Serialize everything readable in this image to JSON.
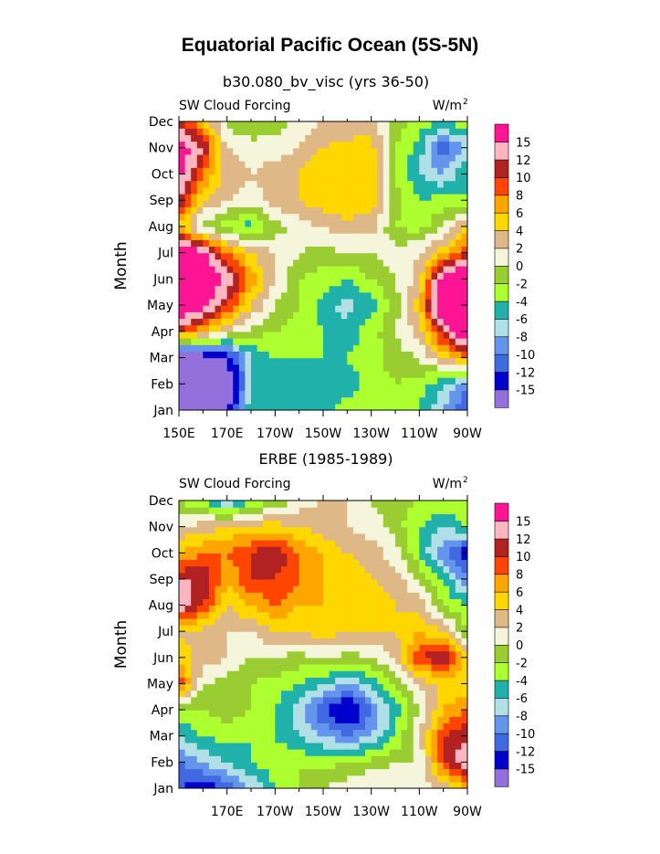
{
  "title": "Equatorial Pacific Ocean (5S-5N)",
  "colors": [
    "#9370DB",
    "#0000CD",
    "#4169E1",
    "#6495ED",
    "#B0E0E6",
    "#20B2AA",
    "#ADFF2F",
    "#9ACD32",
    "#F5F5DC",
    "#DEB887",
    "#FFD700",
    "#FFA500",
    "#FF4500",
    "#B22222",
    "#FFB6C1",
    "#FF1493"
  ],
  "colorbar_labels": [
    "-15",
    "-12",
    "-10",
    "-8",
    "-6",
    "-4",
    "-2",
    "0",
    "2",
    "4",
    "6",
    "8",
    "10",
    "12",
    "15"
  ],
  "chart_data": [
    {
      "type": "heatmap",
      "subtitle": "b30.080_bv_visc (yrs 36-50)",
      "left_label": "SW Cloud Forcing",
      "right_label": "W/m",
      "right_label_sup": "2",
      "ylabel": "Month",
      "y_ticks": [
        "Jan",
        "Feb",
        "Mar",
        "Apr",
        "May",
        "Jun",
        "Jul",
        "Aug",
        "Sep",
        "Oct",
        "Nov",
        "Dec"
      ],
      "x_ticks": [
        "150E",
        "170E",
        "170W",
        "150W",
        "130W",
        "110W",
        "90W"
      ],
      "x_tick_positions": [
        0,
        1,
        2,
        3,
        4,
        5,
        6
      ],
      "levels": [
        -15,
        -12,
        -10,
        -8,
        -6,
        -4,
        -2,
        0,
        2,
        4,
        6,
        8,
        10,
        12,
        15
      ],
      "x": [
        0,
        0.5,
        1,
        1.5,
        2,
        2.5,
        3,
        3.5,
        4,
        4.5,
        5,
        5.5,
        6
      ],
      "grid": [
        [
          -20,
          -20,
          -16,
          -4,
          -4,
          -6,
          -5,
          -3,
          -2,
          -2,
          -4,
          -8,
          -12
        ],
        [
          -20,
          -20,
          -18,
          -6,
          -4,
          -5,
          -5,
          -5,
          -3,
          -2,
          -3,
          -6,
          -10
        ],
        [
          -20,
          -18,
          -15,
          -6,
          -4,
          -4,
          -4,
          -4,
          -3,
          -1,
          0,
          4,
          8
        ],
        [
          10,
          6,
          2,
          -1,
          -2,
          -3,
          -4,
          -5,
          -3,
          0,
          3,
          12,
          20
        ],
        [
          20,
          16,
          10,
          4,
          0,
          -2,
          -5,
          -7,
          -5,
          -1,
          5,
          20,
          20
        ],
        [
          20,
          20,
          14,
          7,
          2,
          -2,
          -3,
          -4,
          -2,
          0,
          3,
          18,
          20
        ],
        [
          20,
          16,
          8,
          4,
          2,
          0,
          -1,
          0,
          0,
          1,
          2,
          5,
          10
        ],
        [
          6,
          -1,
          -3,
          -5,
          -1,
          1,
          2,
          3,
          3,
          -2,
          -3,
          0,
          5
        ],
        [
          12,
          4,
          2,
          1,
          3,
          4,
          5,
          6,
          5,
          -1,
          -4,
          -3,
          -4
        ],
        [
          16,
          8,
          3,
          2,
          3,
          4,
          6,
          5,
          5,
          -2,
          -6,
          -8,
          -4
        ],
        [
          18,
          12,
          2,
          1,
          1,
          2,
          4,
          5,
          5,
          -2,
          -5,
          -12,
          -8
        ],
        [
          10,
          6,
          -1,
          -2,
          -1,
          1,
          2,
          2,
          3,
          -1,
          -3,
          -4,
          -2
        ]
      ]
    },
    {
      "type": "heatmap",
      "subtitle": "ERBE (1985-1989)",
      "left_label": "SW Cloud Forcing",
      "right_label": "W/m",
      "right_label_sup": "2",
      "ylabel": "Month",
      "y_ticks": [
        "Jan",
        "Feb",
        "Mar",
        "Apr",
        "May",
        "Jun",
        "Jul",
        "Aug",
        "Sep",
        "Oct",
        "Nov",
        "Dec"
      ],
      "x_ticks": [
        "170E",
        "170W",
        "150W",
        "130W",
        "110W",
        "90W"
      ],
      "x_tick_positions": [
        1,
        2,
        3,
        4,
        5,
        6
      ],
      "levels": [
        -15,
        -12,
        -10,
        -8,
        -6,
        -4,
        -2,
        0,
        2,
        4,
        6,
        8,
        10,
        12,
        15
      ],
      "x": [
        0,
        0.5,
        1,
        1.5,
        2,
        2.5,
        3,
        3.5,
        4,
        4.5,
        5,
        5.5,
        6
      ],
      "grid": [
        [
          -12,
          -14,
          -12,
          -8,
          -4,
          -2,
          0,
          1,
          2,
          2,
          1,
          2,
          6
        ],
        [
          -10,
          -8,
          -6,
          -4,
          -3,
          -2,
          -3,
          -2,
          -1,
          0,
          0,
          10,
          14
        ],
        [
          -6,
          -4,
          -3,
          -4,
          -4,
          -6,
          -8,
          -10,
          -8,
          -4,
          2,
          10,
          12
        ],
        [
          -3,
          -2,
          -1,
          -2,
          -4,
          -7,
          -12,
          -16,
          -10,
          -5,
          0,
          6,
          8
        ],
        [
          10,
          0,
          -1,
          -2,
          -3,
          -4,
          -6,
          -8,
          -6,
          -2,
          2,
          5,
          4
        ],
        [
          5,
          3,
          2,
          0,
          0,
          -1,
          0,
          -1,
          0,
          2,
          10,
          12,
          5
        ],
        [
          4,
          3,
          2,
          2,
          4,
          4,
          5,
          4,
          4,
          4,
          6,
          4,
          -2
        ],
        [
          14,
          10,
          4,
          6,
          8,
          6,
          6,
          5,
          5,
          4,
          3,
          -2,
          -4
        ],
        [
          12,
          12,
          6,
          10,
          10,
          8,
          6,
          5,
          4,
          3,
          0,
          -4,
          -10
        ],
        [
          6,
          8,
          8,
          10,
          12,
          8,
          6,
          4,
          3,
          1,
          -4,
          -10,
          -14
        ],
        [
          2,
          3,
          4,
          5,
          5,
          4,
          3,
          2,
          1,
          -1,
          -4,
          -6,
          -4
        ],
        [
          -2,
          -4,
          -8,
          -4,
          -2,
          1,
          2,
          2,
          0,
          -1,
          -2,
          -2,
          -2
        ]
      ]
    }
  ]
}
